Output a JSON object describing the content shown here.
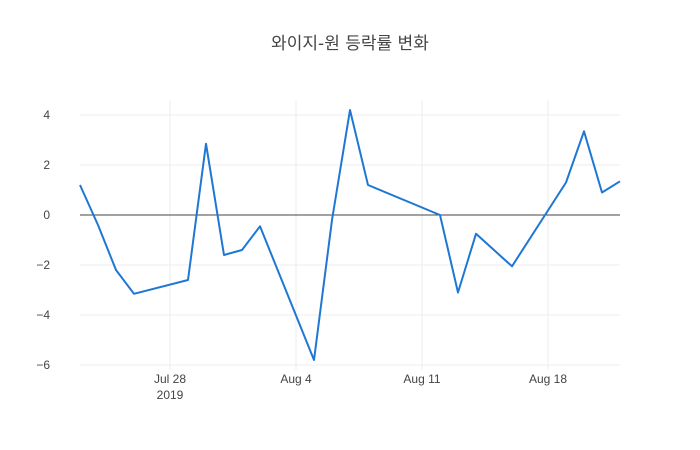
{
  "chart_data": {
    "type": "line",
    "title": "와이지-원 등락률 변화",
    "xlabel": "",
    "ylabel": "",
    "x_ticks": [
      {
        "date": "2019-07-28",
        "label": "Jul 28",
        "sublabel": "2019"
      },
      {
        "date": "2019-08-04",
        "label": "Aug 4",
        "sublabel": ""
      },
      {
        "date": "2019-08-11",
        "label": "Aug 11",
        "sublabel": ""
      },
      {
        "date": "2019-08-18",
        "label": "Aug 18",
        "sublabel": ""
      }
    ],
    "xlim": [
      "2019-07-23",
      "2019-08-22"
    ],
    "y_ticks": [
      4,
      2,
      0,
      -2,
      -4,
      -6
    ],
    "ylim": [
      -6.2,
      4.6
    ],
    "grid": true,
    "zero_line": true,
    "color": "#1f77d4",
    "series": [
      {
        "x": [
          "2019-07-23",
          "2019-07-24",
          "2019-07-25",
          "2019-07-26",
          "2019-07-29",
          "2019-07-30",
          "2019-07-31",
          "2019-08-01",
          "2019-08-02",
          "2019-08-05",
          "2019-08-06",
          "2019-08-07",
          "2019-08-08",
          "2019-08-12",
          "2019-08-13",
          "2019-08-14",
          "2019-08-16",
          "2019-08-19",
          "2019-08-20",
          "2019-08-21",
          "2019-08-22"
        ],
        "y": [
          1.2,
          -0.4,
          -2.2,
          -3.15,
          -2.6,
          2.85,
          -1.6,
          -1.4,
          -0.45,
          -5.8,
          -0.2,
          4.2,
          1.2,
          0.0,
          -3.1,
          -0.75,
          -2.05,
          1.3,
          3.35,
          0.9,
          1.35
        ]
      }
    ]
  }
}
